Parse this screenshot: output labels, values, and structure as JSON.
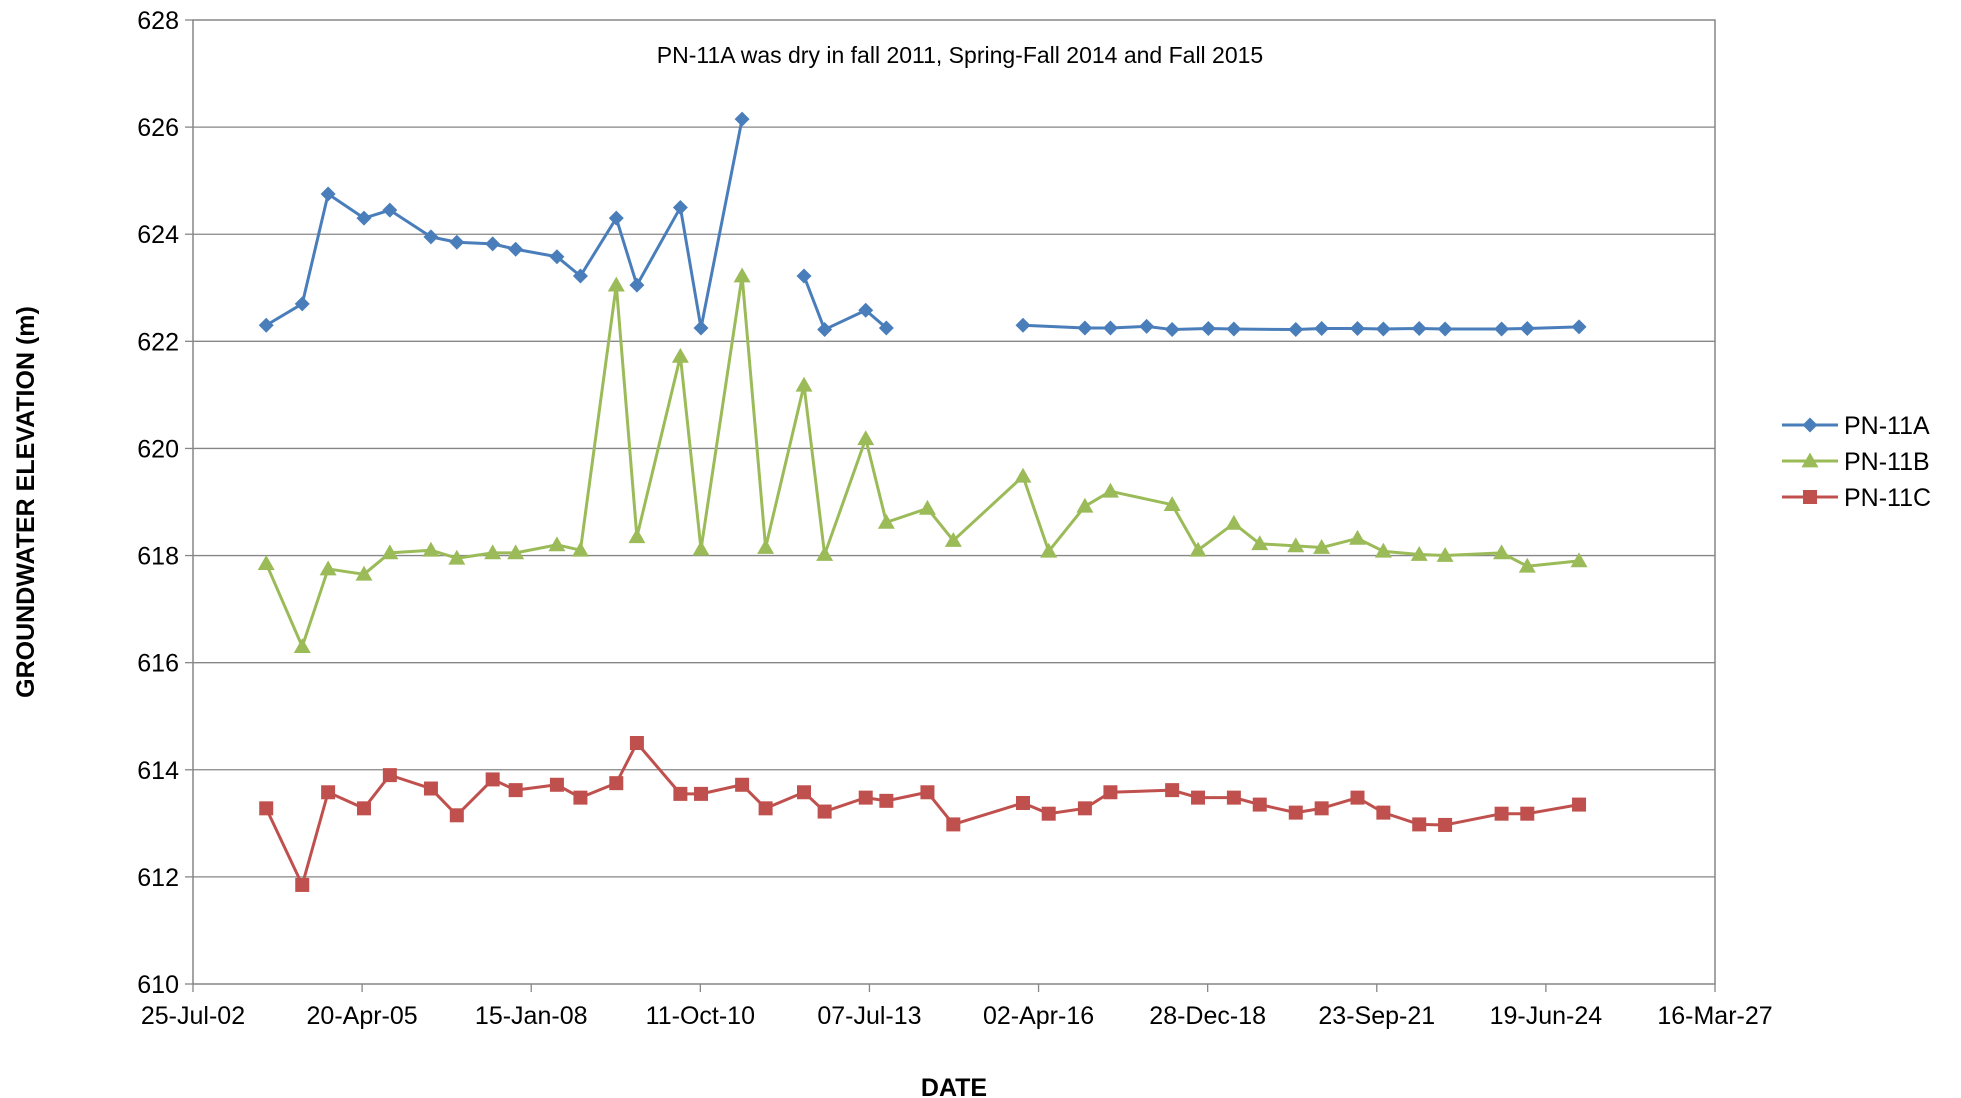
{
  "chart_data": {
    "type": "line",
    "title": "",
    "annotation": "PN-11A was dry in fall 2011, Spring-Fall 2014 and Fall 2015",
    "xlabel": "DATE",
    "ylabel": "GROUNDWATER ELEVATION (m)",
    "x_axis_type": "date",
    "xlim": [
      "2002-07-25",
      "2027-03-16"
    ],
    "ylim": [
      610,
      628
    ],
    "x_ticks": [
      {
        "date": "2002-07-25",
        "label": "25-Jul-02"
      },
      {
        "date": "2005-04-20",
        "label": "20-Apr-05"
      },
      {
        "date": "2008-01-15",
        "label": "15-Jan-08"
      },
      {
        "date": "2010-10-11",
        "label": "11-Oct-10"
      },
      {
        "date": "2013-07-07",
        "label": "07-Jul-13"
      },
      {
        "date": "2016-04-02",
        "label": "02-Apr-16"
      },
      {
        "date": "2018-12-28",
        "label": "28-Dec-18"
      },
      {
        "date": "2021-09-23",
        "label": "23-Sep-21"
      },
      {
        "date": "2024-06-19",
        "label": "19-Jun-24"
      },
      {
        "date": "2027-03-16",
        "label": "16-Mar-27"
      }
    ],
    "y_ticks": [
      "610",
      "612",
      "614",
      "616",
      "618",
      "620",
      "622",
      "624",
      "626",
      "628"
    ],
    "grid": "horizontal",
    "legend_position": "right",
    "series": [
      {
        "name": "PN-11A",
        "color": "#4A7EBB",
        "marker": "diamond",
        "points": [
          {
            "x": "2003-10-01",
            "y": 622.3
          },
          {
            "x": "2004-05-01",
            "y": 622.7
          },
          {
            "x": "2004-10-01",
            "y": 624.75
          },
          {
            "x": "2005-05-01",
            "y": 624.3
          },
          {
            "x": "2005-10-01",
            "y": 624.45
          },
          {
            "x": "2006-06-01",
            "y": 623.95
          },
          {
            "x": "2006-11-01",
            "y": 623.85
          },
          {
            "x": "2007-06-01",
            "y": 623.82
          },
          {
            "x": "2007-10-15",
            "y": 623.72
          },
          {
            "x": "2008-06-15",
            "y": 623.58
          },
          {
            "x": "2008-11-01",
            "y": 623.22
          },
          {
            "x": "2009-06-01",
            "y": 624.3
          },
          {
            "x": "2009-10-01",
            "y": 623.05
          },
          {
            "x": "2010-06-15",
            "y": 624.5
          },
          {
            "x": "2010-10-15",
            "y": 622.25
          },
          {
            "x": "2011-06-15",
            "y": 626.15
          },
          {
            "x": null,
            "y": null
          },
          {
            "x": "2012-06-15",
            "y": 623.22
          },
          {
            "x": "2012-10-15",
            "y": 622.22
          },
          {
            "x": "2013-06-15",
            "y": 622.58
          },
          {
            "x": "2013-10-15",
            "y": 622.25
          },
          {
            "x": null,
            "y": null
          },
          {
            "x": "2016-01-01",
            "y": 622.3
          },
          {
            "x": "2017-01-01",
            "y": 622.25
          },
          {
            "x": "2017-06-01",
            "y": 622.25
          },
          {
            "x": "2018-01-01",
            "y": 622.28
          },
          {
            "x": "2018-06-01",
            "y": 622.22
          },
          {
            "x": "2019-01-01",
            "y": 622.24
          },
          {
            "x": "2019-06-01",
            "y": 622.23
          },
          {
            "x": "2020-06-01",
            "y": 622.22
          },
          {
            "x": "2020-11-01",
            "y": 622.24
          },
          {
            "x": "2021-06-01",
            "y": 622.24
          },
          {
            "x": "2021-11-01",
            "y": 622.23
          },
          {
            "x": "2022-06-01",
            "y": 622.24
          },
          {
            "x": "2022-11-01",
            "y": 622.23
          },
          {
            "x": "2023-10-01",
            "y": 622.23
          },
          {
            "x": "2024-03-01",
            "y": 622.24
          },
          {
            "x": "2025-01-01",
            "y": 622.27
          }
        ]
      },
      {
        "name": "PN-11B",
        "color": "#9BBB59",
        "marker": "triangle",
        "points": [
          {
            "x": "2003-10-01",
            "y": 617.85
          },
          {
            "x": "2004-05-01",
            "y": 616.3
          },
          {
            "x": "2004-10-01",
            "y": 617.75
          },
          {
            "x": "2005-05-01",
            "y": 617.65
          },
          {
            "x": "2005-10-01",
            "y": 618.05
          },
          {
            "x": "2006-06-01",
            "y": 618.1
          },
          {
            "x": "2006-11-01",
            "y": 617.95
          },
          {
            "x": "2007-06-01",
            "y": 618.05
          },
          {
            "x": "2007-10-15",
            "y": 618.05
          },
          {
            "x": "2008-06-15",
            "y": 618.2
          },
          {
            "x": "2008-11-01",
            "y": 618.1
          },
          {
            "x": "2009-06-01",
            "y": 623.05
          },
          {
            "x": "2009-10-01",
            "y": 618.35
          },
          {
            "x": "2010-06-15",
            "y": 621.72
          },
          {
            "x": "2010-10-15",
            "y": 618.12
          },
          {
            "x": "2011-06-15",
            "y": 623.22
          },
          {
            "x": "2011-11-01",
            "y": 618.15
          },
          {
            "x": "2012-06-15",
            "y": 621.18
          },
          {
            "x": "2012-10-15",
            "y": 618.02
          },
          {
            "x": "2013-06-15",
            "y": 620.18
          },
          {
            "x": "2013-10-15",
            "y": 618.62
          },
          {
            "x": "2014-06-15",
            "y": 618.88
          },
          {
            "x": "2014-11-15",
            "y": 618.28
          },
          {
            "x": "2016-01-01",
            "y": 619.48
          },
          {
            "x": "2016-06-01",
            "y": 618.08
          },
          {
            "x": "2017-01-01",
            "y": 618.92
          },
          {
            "x": "2017-06-01",
            "y": 619.2
          },
          {
            "x": "2018-06-01",
            "y": 618.95
          },
          {
            "x": "2018-11-01",
            "y": 618.1
          },
          {
            "x": "2019-06-01",
            "y": 618.6
          },
          {
            "x": "2019-11-01",
            "y": 618.22
          },
          {
            "x": "2020-06-01",
            "y": 618.18
          },
          {
            "x": "2020-11-01",
            "y": 618.15
          },
          {
            "x": "2021-06-01",
            "y": 618.32
          },
          {
            "x": "2021-11-01",
            "y": 618.08
          },
          {
            "x": "2022-06-01",
            "y": 618.02
          },
          {
            "x": "2022-11-01",
            "y": 618.0
          },
          {
            "x": "2023-10-01",
            "y": 618.05
          },
          {
            "x": "2024-03-01",
            "y": 617.8
          },
          {
            "x": "2025-01-01",
            "y": 617.9
          }
        ]
      },
      {
        "name": "PN-11C",
        "color": "#C0504D",
        "marker": "square",
        "points": [
          {
            "x": "2003-10-01",
            "y": 613.28
          },
          {
            "x": "2004-05-01",
            "y": 611.85
          },
          {
            "x": "2004-10-01",
            "y": 613.58
          },
          {
            "x": "2005-05-01",
            "y": 613.28
          },
          {
            "x": "2005-10-01",
            "y": 613.9
          },
          {
            "x": "2006-06-01",
            "y": 613.65
          },
          {
            "x": "2006-11-01",
            "y": 613.15
          },
          {
            "x": "2007-06-01",
            "y": 613.82
          },
          {
            "x": "2007-10-15",
            "y": 613.62
          },
          {
            "x": "2008-06-15",
            "y": 613.72
          },
          {
            "x": "2008-11-01",
            "y": 613.48
          },
          {
            "x": "2009-06-01",
            "y": 613.75
          },
          {
            "x": "2009-10-01",
            "y": 614.5
          },
          {
            "x": "2010-06-15",
            "y": 613.55
          },
          {
            "x": "2010-10-15",
            "y": 613.55
          },
          {
            "x": "2011-06-15",
            "y": 613.72
          },
          {
            "x": "2011-11-01",
            "y": 613.28
          },
          {
            "x": "2012-06-15",
            "y": 613.58
          },
          {
            "x": "2012-10-15",
            "y": 613.22
          },
          {
            "x": "2013-06-15",
            "y": 613.48
          },
          {
            "x": "2013-10-15",
            "y": 613.42
          },
          {
            "x": "2014-06-15",
            "y": 613.58
          },
          {
            "x": "2014-11-15",
            "y": 612.98
          },
          {
            "x": "2016-01-01",
            "y": 613.38
          },
          {
            "x": "2016-06-01",
            "y": 613.18
          },
          {
            "x": "2017-01-01",
            "y": 613.28
          },
          {
            "x": "2017-06-01",
            "y": 613.58
          },
          {
            "x": "2018-06-01",
            "y": 613.62
          },
          {
            "x": "2018-11-01",
            "y": 613.48
          },
          {
            "x": "2019-06-01",
            "y": 613.48
          },
          {
            "x": "2019-11-01",
            "y": 613.35
          },
          {
            "x": "2020-06-01",
            "y": 613.2
          },
          {
            "x": "2020-11-01",
            "y": 613.28
          },
          {
            "x": "2021-06-01",
            "y": 613.48
          },
          {
            "x": "2021-11-01",
            "y": 613.2
          },
          {
            "x": "2022-06-01",
            "y": 612.98
          },
          {
            "x": "2022-11-01",
            "y": 612.97
          },
          {
            "x": "2023-10-01",
            "y": 613.18
          },
          {
            "x": "2024-03-01",
            "y": 613.18
          },
          {
            "x": "2025-01-01",
            "y": 613.35
          }
        ]
      }
    ]
  }
}
